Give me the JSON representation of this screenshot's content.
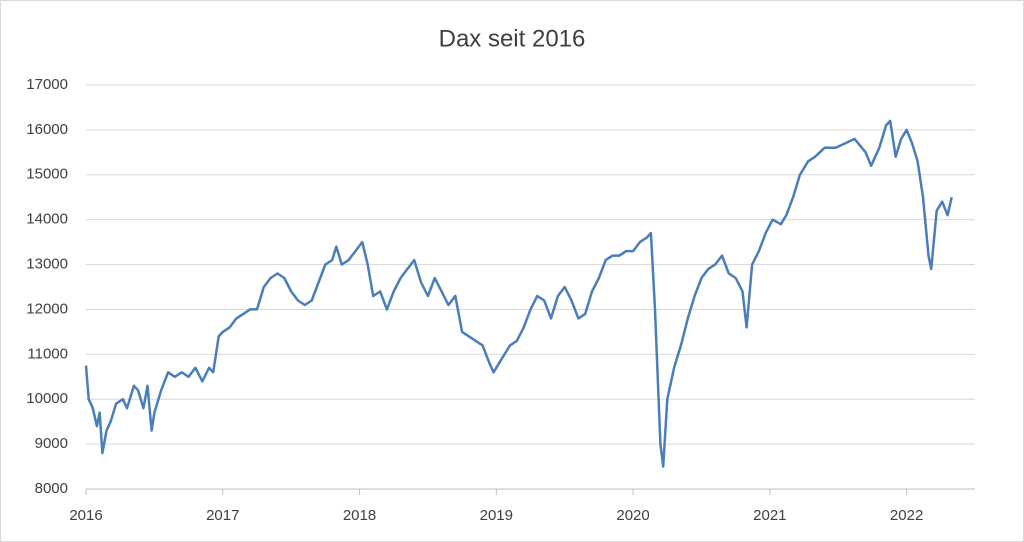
{
  "chart_data": {
    "type": "line",
    "title": "Dax seit 2016",
    "x": [
      2016.0,
      2016.02,
      2016.05,
      2016.08,
      2016.1,
      2016.12,
      2016.15,
      2016.18,
      2016.22,
      2016.27,
      2016.3,
      2016.35,
      2016.38,
      2016.42,
      2016.45,
      2016.48,
      2016.5,
      2016.55,
      2016.6,
      2016.65,
      2016.7,
      2016.75,
      2016.8,
      2016.85,
      2016.9,
      2016.93,
      2016.97,
      2017.0,
      2017.05,
      2017.1,
      2017.15,
      2017.2,
      2017.25,
      2017.3,
      2017.35,
      2017.4,
      2017.45,
      2017.5,
      2017.55,
      2017.6,
      2017.65,
      2017.7,
      2017.75,
      2017.8,
      2017.83,
      2017.87,
      2017.92,
      2017.97,
      2018.02,
      2018.06,
      2018.1,
      2018.15,
      2018.2,
      2018.25,
      2018.3,
      2018.35,
      2018.4,
      2018.45,
      2018.5,
      2018.55,
      2018.6,
      2018.65,
      2018.7,
      2018.75,
      2018.8,
      2018.85,
      2018.9,
      2018.95,
      2018.98,
      2019.02,
      2019.1,
      2019.15,
      2019.2,
      2019.25,
      2019.3,
      2019.35,
      2019.4,
      2019.45,
      2019.5,
      2019.55,
      2019.6,
      2019.65,
      2019.7,
      2019.75,
      2019.8,
      2019.85,
      2019.9,
      2019.95,
      2020.0,
      2020.05,
      2020.1,
      2020.13,
      2020.16,
      2020.2,
      2020.22,
      2020.25,
      2020.3,
      2020.35,
      2020.4,
      2020.45,
      2020.5,
      2020.55,
      2020.6,
      2020.65,
      2020.7,
      2020.75,
      2020.8,
      2020.83,
      2020.87,
      2020.92,
      2020.97,
      2021.02,
      2021.08,
      2021.12,
      2021.17,
      2021.22,
      2021.28,
      2021.33,
      2021.4,
      2021.48,
      2021.55,
      2021.62,
      2021.7,
      2021.74,
      2021.8,
      2021.85,
      2021.88,
      2021.92,
      2021.96,
      2022.0,
      2022.04,
      2022.08,
      2022.12,
      2022.16,
      2022.18,
      2022.22,
      2022.26,
      2022.3,
      2022.33
    ],
    "series": [
      {
        "name": "Dax",
        "color": "#4a7ebb",
        "values": [
          10750,
          10000,
          9800,
          9400,
          9700,
          8800,
          9300,
          9500,
          9900,
          10000,
          9800,
          10300,
          10200,
          9800,
          10300,
          9300,
          9700,
          10200,
          10600,
          10500,
          10600,
          10500,
          10700,
          10400,
          10700,
          10600,
          11400,
          11500,
          11600,
          11800,
          11900,
          12000,
          12000,
          12500,
          12700,
          12800,
          12700,
          12400,
          12200,
          12100,
          12200,
          12600,
          13000,
          13100,
          13400,
          13000,
          13100,
          13300,
          13500,
          13000,
          12300,
          12400,
          12000,
          12400,
          12700,
          12900,
          13100,
          12600,
          12300,
          12700,
          12400,
          12100,
          12300,
          11500,
          11400,
          11300,
          11200,
          10800,
          10600,
          10800,
          11200,
          11300,
          11600,
          12000,
          12300,
          12200,
          11800,
          12300,
          12500,
          12200,
          11800,
          11900,
          12400,
          12700,
          13100,
          13200,
          13200,
          13300,
          13300,
          13500,
          13600,
          13700,
          12000,
          9000,
          8500,
          10000,
          10700,
          11200,
          11800,
          12300,
          12700,
          12900,
          13000,
          13200,
          12800,
          12700,
          12400,
          11600,
          13000,
          13300,
          13700,
          14000,
          13900,
          14100,
          14500,
          15000,
          15300,
          15400,
          15600,
          15600,
          15700,
          15800,
          15500,
          15200,
          15600,
          16100,
          16200,
          15400,
          15800,
          16000,
          15700,
          15300,
          14500,
          13200,
          12900,
          14200,
          14400,
          14100,
          14500
        ]
      }
    ],
    "xlim": [
      2016,
      2022.5
    ],
    "xticks": [
      2016,
      2017,
      2018,
      2019,
      2020,
      2021,
      2022
    ],
    "ylim": [
      8000,
      17000
    ],
    "yticks": [
      8000,
      9000,
      10000,
      11000,
      12000,
      13000,
      14000,
      15000,
      16000,
      17000
    ],
    "grid": true
  }
}
